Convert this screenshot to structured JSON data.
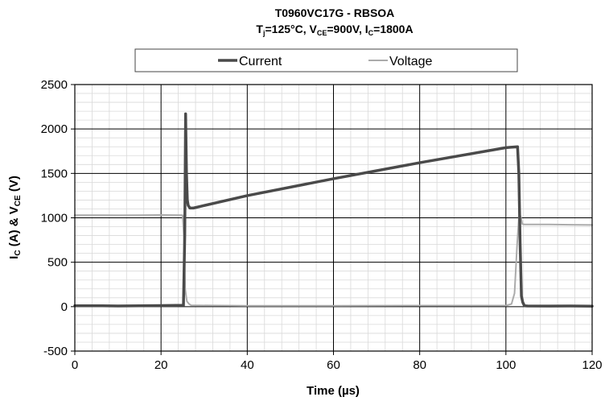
{
  "chart_data": {
    "type": "line",
    "title": {
      "line1": "T0960VC17G - RBSOA",
      "line2": [
        {
          "t": "T",
          "s": "main"
        },
        {
          "t": "j",
          "s": "sub"
        },
        {
          "t": "=125°C, V",
          "s": "main"
        },
        {
          "t": "CE",
          "s": "sub"
        },
        {
          "t": "=900V, I",
          "s": "main"
        },
        {
          "t": "C",
          "s": "sub"
        },
        {
          "t": "=1800A",
          "s": "main"
        }
      ]
    },
    "xlabel": "Time (µs)",
    "ylabel": [
      {
        "t": "I",
        "s": "main"
      },
      {
        "t": "C",
        "s": "sub"
      },
      {
        "t": " (A) & V",
        "s": "main"
      },
      {
        "t": "CE",
        "s": "sub"
      },
      {
        "t": " (V)",
        "s": "main"
      }
    ],
    "xlim": [
      0,
      120
    ],
    "ylim": [
      -500,
      2500
    ],
    "xticks": [
      0,
      20,
      40,
      60,
      80,
      100,
      120
    ],
    "yticks": [
      -500,
      0,
      500,
      1000,
      1500,
      2000,
      2500
    ],
    "minor_x_step": 4,
    "minor_y_step": 100,
    "grid": true,
    "legend_position": "top",
    "series": [
      {
        "name": "Current",
        "color": "#4a4a4a",
        "width": 3.5,
        "x": [
          0,
          5,
          10,
          15,
          20,
          25.2,
          25.5,
          25.7,
          25.9,
          26.1,
          26.3,
          26.7,
          27.5,
          40,
          60,
          80,
          100,
          102.7,
          103.0,
          103.3,
          103.6,
          103.9,
          104.3,
          105,
          110,
          115,
          120
        ],
        "y": [
          10,
          10,
          8,
          10,
          12,
          15,
          800,
          2170,
          1500,
          1200,
          1140,
          1110,
          1110,
          1250,
          1440,
          1620,
          1790,
          1800,
          1500,
          700,
          120,
          50,
          10,
          8,
          6,
          8,
          5
        ]
      },
      {
        "name": "Voltage",
        "color": "#ababab",
        "width": 2,
        "x": [
          0,
          5,
          10,
          15,
          20,
          25,
          25.3,
          25.6,
          26.0,
          26.5,
          27,
          40,
          60,
          80,
          100,
          101.3,
          102.0,
          102.6,
          103.1,
          103.5,
          103.8,
          104.3,
          105,
          110,
          115,
          120
        ],
        "y": [
          1030,
          1030,
          1028,
          1030,
          1032,
          1030,
          800,
          200,
          60,
          30,
          15,
          10,
          10,
          12,
          12,
          30,
          150,
          700,
          1060,
          1000,
          930,
          925,
          925,
          925,
          922,
          920
        ]
      }
    ]
  }
}
